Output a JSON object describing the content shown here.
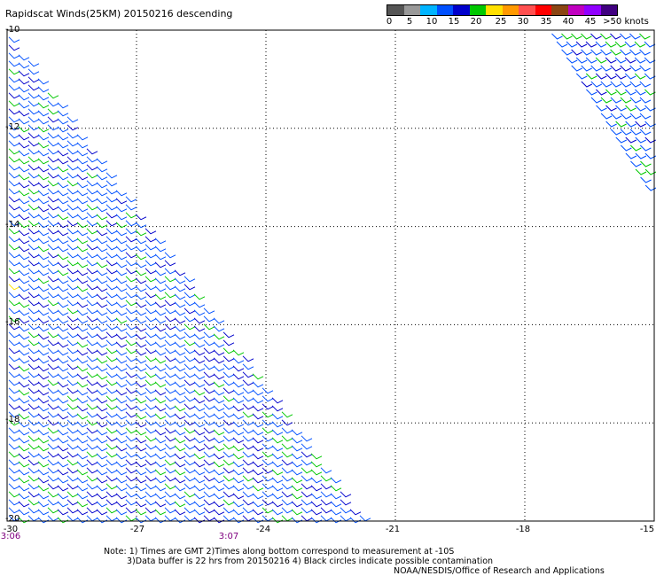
{
  "title": "Rapidscat Winds(25KM) 20150216 descending",
  "legend": {
    "colors": [
      "#555555",
      "#999999",
      "#00b4ff",
      "#0050ff",
      "#0000cc",
      "#00c800",
      "#ffe000",
      "#ff9900",
      "#ff5050",
      "#ff0000",
      "#8b4513",
      "#c000c0",
      "#9000ff",
      "#400080"
    ],
    "ticks": [
      "0",
      "5",
      "10",
      "15",
      "20",
      "25",
      "30",
      "35",
      "40",
      "45",
      ">50 knots"
    ]
  },
  "axes": {
    "y_labels": [
      "-10",
      "-12",
      "-14",
      "-16",
      "-18",
      "-20"
    ],
    "x_labels": [
      "-30",
      "-27",
      "-24",
      "-21",
      "-18",
      "-15"
    ],
    "time_labels": [
      "3:06",
      "3:07"
    ]
  },
  "notes": {
    "line1": "Note: 1) Times are GMT 2)Times along bottom correspond to measurement at -10S",
    "line2": "3)Data buffer is 22 hrs from 20150216 4) Black circles indicate possible contamination",
    "line3": "NOAA/NESDIS/Office of Research and Applications"
  },
  "map": {
    "lat_range": [
      -20,
      -10
    ],
    "lon_range": [
      -30,
      -15
    ],
    "wind_direction": "from south-east",
    "dominant_speeds_knots": [
      10,
      20
    ]
  }
}
